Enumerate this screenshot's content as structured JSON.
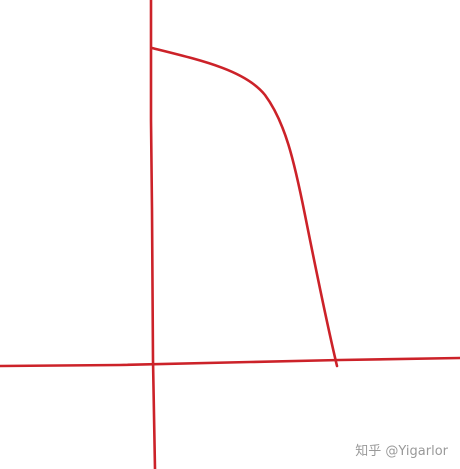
{
  "diagram": {
    "stroke_color": "#cc2229",
    "elements": [
      "vertical-axis",
      "horizontal-axis",
      "concave-curve"
    ]
  },
  "watermark": {
    "text": "知乎 @Yigarlor"
  }
}
